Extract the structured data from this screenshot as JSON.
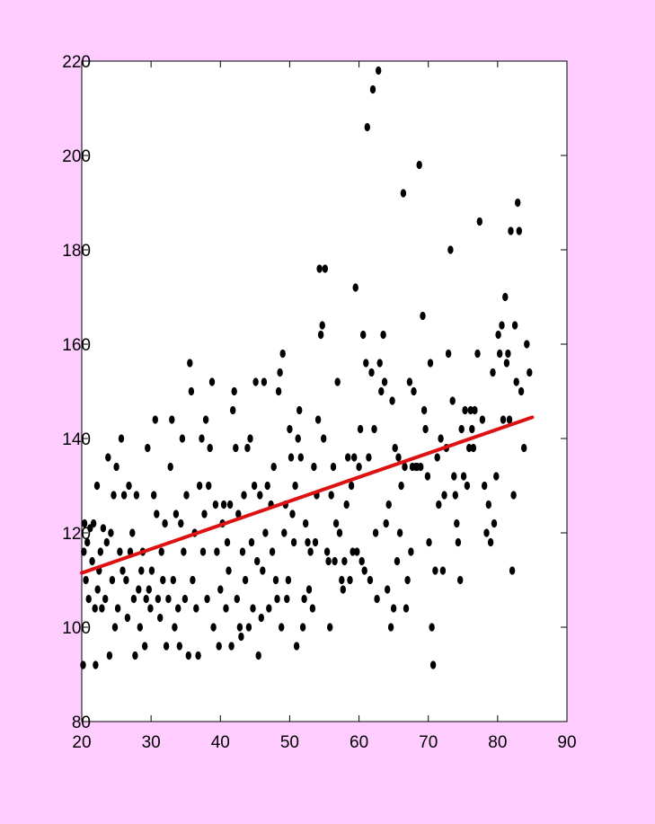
{
  "chart_data": {
    "type": "scatter",
    "title": "",
    "xlabel": "",
    "ylabel": "",
    "xlim": [
      20,
      90
    ],
    "ylim": [
      80,
      220
    ],
    "x_ticks": [
      20,
      30,
      40,
      50,
      60,
      70,
      80,
      90
    ],
    "y_ticks": [
      80,
      100,
      120,
      140,
      160,
      180,
      200,
      220
    ],
    "x_tick_labels": [
      "20",
      "30",
      "40",
      "50",
      "60",
      "70",
      "80",
      "90"
    ],
    "y_tick_labels": [
      "80",
      "100",
      "120",
      "140",
      "160",
      "180",
      "200",
      "220"
    ],
    "grid": false,
    "legend": "none",
    "colors": {
      "background": "#FFCCFF",
      "plot_area": "#FFFFFF",
      "points": "#000000",
      "fit_line": "#DD1111"
    },
    "series": [
      {
        "type": "scatter",
        "points": [
          [
            20.2,
            92
          ],
          [
            20.3,
            116
          ],
          [
            20.4,
            122
          ],
          [
            20.6,
            110
          ],
          [
            20.8,
            118
          ],
          [
            21,
            106
          ],
          [
            21.2,
            121
          ],
          [
            21.5,
            114
          ],
          [
            21.7,
            122
          ],
          [
            21.9,
            104
          ],
          [
            22,
            92
          ],
          [
            22.2,
            130
          ],
          [
            22.3,
            108
          ],
          [
            22.5,
            112
          ],
          [
            22.7,
            116
          ],
          [
            22.9,
            104
          ],
          [
            23.1,
            121
          ],
          [
            23.4,
            106
          ],
          [
            23.6,
            118
          ],
          [
            23.8,
            136
          ],
          [
            24,
            94
          ],
          [
            24.2,
            120
          ],
          [
            24.4,
            110
          ],
          [
            24.6,
            128
          ],
          [
            24.8,
            100
          ],
          [
            25,
            134
          ],
          [
            25.2,
            104
          ],
          [
            25.5,
            116
          ],
          [
            25.7,
            140
          ],
          [
            25.9,
            112
          ],
          [
            26.1,
            128
          ],
          [
            26.4,
            110
          ],
          [
            26.6,
            102
          ],
          [
            26.8,
            130
          ],
          [
            27,
            116
          ],
          [
            27.3,
            120
          ],
          [
            27.5,
            106
          ],
          [
            27.7,
            94
          ],
          [
            27.9,
            128
          ],
          [
            28.2,
            108
          ],
          [
            28.4,
            100
          ],
          [
            28.6,
            112
          ],
          [
            28.8,
            116
          ],
          [
            29.1,
            96
          ],
          [
            29.3,
            106
          ],
          [
            29.5,
            138
          ],
          [
            29.7,
            108
          ],
          [
            29.9,
            104
          ],
          [
            30.1,
            112
          ],
          [
            30.4,
            128
          ],
          [
            30.6,
            144
          ],
          [
            30.8,
            124
          ],
          [
            31,
            106
          ],
          [
            31.3,
            102
          ],
          [
            31.5,
            116
          ],
          [
            31.7,
            110
          ],
          [
            32,
            122
          ],
          [
            32.2,
            96
          ],
          [
            32.5,
            106
          ],
          [
            32.8,
            134
          ],
          [
            33,
            144
          ],
          [
            33.2,
            110
          ],
          [
            33.4,
            100
          ],
          [
            33.6,
            124
          ],
          [
            33.9,
            104
          ],
          [
            34.1,
            96
          ],
          [
            34.3,
            122
          ],
          [
            34.5,
            140
          ],
          [
            34.7,
            116
          ],
          [
            34.9,
            106
          ],
          [
            35.1,
            128
          ],
          [
            35.4,
            94
          ],
          [
            35.6,
            156
          ],
          [
            35.8,
            150
          ],
          [
            36,
            110
          ],
          [
            36.3,
            120
          ],
          [
            36.5,
            104
          ],
          [
            36.8,
            94
          ],
          [
            37,
            130
          ],
          [
            37.3,
            140
          ],
          [
            37.5,
            116
          ],
          [
            37.7,
            124
          ],
          [
            37.9,
            144
          ],
          [
            38.1,
            106
          ],
          [
            38.3,
            130
          ],
          [
            38.5,
            138
          ],
          [
            38.8,
            152
          ],
          [
            39,
            100
          ],
          [
            39.3,
            126
          ],
          [
            39.5,
            116
          ],
          [
            39.8,
            96
          ],
          [
            40,
            108
          ],
          [
            40.3,
            122
          ],
          [
            40.5,
            126
          ],
          [
            40.8,
            104
          ],
          [
            41,
            118
          ],
          [
            41.2,
            112
          ],
          [
            41.4,
            126
          ],
          [
            41.6,
            96
          ],
          [
            41.8,
            146
          ],
          [
            42,
            150
          ],
          [
            42.2,
            138
          ],
          [
            42.4,
            106
          ],
          [
            42.6,
            124
          ],
          [
            42.8,
            100
          ],
          [
            43,
            98
          ],
          [
            43.2,
            116
          ],
          [
            43.4,
            128
          ],
          [
            43.6,
            110
          ],
          [
            43.9,
            138
          ],
          [
            44.1,
            100
          ],
          [
            44.3,
            140
          ],
          [
            44.5,
            118
          ],
          [
            44.7,
            104
          ],
          [
            44.9,
            130
          ],
          [
            45.1,
            152
          ],
          [
            45.3,
            114
          ],
          [
            45.5,
            94
          ],
          [
            45.7,
            128
          ],
          [
            45.9,
            102
          ],
          [
            46.1,
            112
          ],
          [
            46.3,
            152
          ],
          [
            46.5,
            120
          ],
          [
            46.8,
            130
          ],
          [
            47,
            104
          ],
          [
            47.3,
            126
          ],
          [
            47.5,
            116
          ],
          [
            47.7,
            134
          ],
          [
            48,
            110
          ],
          [
            48.2,
            106
          ],
          [
            48.4,
            150
          ],
          [
            48.6,
            154
          ],
          [
            48.8,
            100
          ],
          [
            49,
            158
          ],
          [
            49.2,
            120
          ],
          [
            49.4,
            126
          ],
          [
            49.6,
            106
          ],
          [
            49.8,
            110
          ],
          [
            50,
            142
          ],
          [
            50.2,
            136
          ],
          [
            50.4,
            124
          ],
          [
            50.6,
            118
          ],
          [
            50.8,
            130
          ],
          [
            51,
            96
          ],
          [
            51.2,
            140
          ],
          [
            51.4,
            146
          ],
          [
            51.6,
            136
          ],
          [
            51.9,
            100
          ],
          [
            52.1,
            106
          ],
          [
            52.3,
            122
          ],
          [
            52.6,
            118
          ],
          [
            52.8,
            108
          ],
          [
            53,
            116
          ],
          [
            53.3,
            104
          ],
          [
            53.5,
            134
          ],
          [
            53.7,
            118
          ],
          [
            53.9,
            128
          ],
          [
            54.1,
            144
          ],
          [
            54.3,
            176
          ],
          [
            54.5,
            162
          ],
          [
            54.7,
            164
          ],
          [
            54.9,
            140
          ],
          [
            55.1,
            176
          ],
          [
            55.4,
            116
          ],
          [
            55.6,
            114
          ],
          [
            55.8,
            100
          ],
          [
            56,
            128
          ],
          [
            56.3,
            134
          ],
          [
            56.5,
            114
          ],
          [
            56.7,
            122
          ],
          [
            56.9,
            152
          ],
          [
            57.2,
            120
          ],
          [
            57.5,
            110
          ],
          [
            57.7,
            108
          ],
          [
            57.9,
            114
          ],
          [
            58.2,
            126
          ],
          [
            58.4,
            136
          ],
          [
            58.7,
            110
          ],
          [
            58.9,
            130
          ],
          [
            59.1,
            116
          ],
          [
            59.3,
            136
          ],
          [
            59.5,
            172
          ],
          [
            59.7,
            116
          ],
          [
            60,
            134
          ],
          [
            60.2,
            142
          ],
          [
            60.4,
            114
          ],
          [
            60.6,
            162
          ],
          [
            60.8,
            112
          ],
          [
            61,
            156
          ],
          [
            61.2,
            206
          ],
          [
            61.4,
            136
          ],
          [
            61.6,
            110
          ],
          [
            61.8,
            154
          ],
          [
            62,
            214
          ],
          [
            62.2,
            142
          ],
          [
            62.4,
            120
          ],
          [
            62.6,
            106
          ],
          [
            62.8,
            218
          ],
          [
            63,
            156
          ],
          [
            63.2,
            150
          ],
          [
            63.5,
            162
          ],
          [
            63.7,
            152
          ],
          [
            63.9,
            122
          ],
          [
            64.1,
            108
          ],
          [
            64.3,
            126
          ],
          [
            64.6,
            100
          ],
          [
            64.8,
            148
          ],
          [
            65,
            104
          ],
          [
            65.2,
            138
          ],
          [
            65.5,
            114
          ],
          [
            65.7,
            136
          ],
          [
            65.9,
            120
          ],
          [
            66.1,
            130
          ],
          [
            66.4,
            192
          ],
          [
            66.6,
            134
          ],
          [
            66.8,
            104
          ],
          [
            67,
            110
          ],
          [
            67.3,
            152
          ],
          [
            67.5,
            116
          ],
          [
            67.7,
            134
          ],
          [
            67.9,
            150
          ],
          [
            68.2,
            134
          ],
          [
            68.4,
            134
          ],
          [
            68.7,
            198
          ],
          [
            68.9,
            134
          ],
          [
            69.2,
            166
          ],
          [
            69.4,
            146
          ],
          [
            69.6,
            142
          ],
          [
            69.9,
            132
          ],
          [
            70.1,
            118
          ],
          [
            70.3,
            156
          ],
          [
            70.5,
            100
          ],
          [
            70.7,
            92
          ],
          [
            71,
            112
          ],
          [
            71.3,
            136
          ],
          [
            71.5,
            126
          ],
          [
            71.8,
            140
          ],
          [
            72.1,
            112
          ],
          [
            72.3,
            128
          ],
          [
            72.6,
            138
          ],
          [
            72.9,
            158
          ],
          [
            73.2,
            180
          ],
          [
            73.5,
            148
          ],
          [
            73.7,
            132
          ],
          [
            73.9,
            128
          ],
          [
            74.1,
            122
          ],
          [
            74.3,
            118
          ],
          [
            74.6,
            110
          ],
          [
            74.8,
            142
          ],
          [
            75.1,
            132
          ],
          [
            75.3,
            146
          ],
          [
            75.6,
            130
          ],
          [
            75.9,
            138
          ],
          [
            76.1,
            146
          ],
          [
            76.3,
            142
          ],
          [
            76.5,
            138
          ],
          [
            76.7,
            146
          ],
          [
            77.1,
            158
          ],
          [
            77.4,
            186
          ],
          [
            77.8,
            144
          ],
          [
            78.1,
            130
          ],
          [
            78.4,
            120
          ],
          [
            78.7,
            126
          ],
          [
            79,
            118
          ],
          [
            79.3,
            154
          ],
          [
            79.5,
            122
          ],
          [
            79.8,
            132
          ],
          [
            80.1,
            162
          ],
          [
            80.3,
            158
          ],
          [
            80.6,
            164
          ],
          [
            80.8,
            144
          ],
          [
            81.1,
            170
          ],
          [
            81.3,
            156
          ],
          [
            81.5,
            158
          ],
          [
            81.7,
            144
          ],
          [
            81.9,
            184
          ],
          [
            82.1,
            112
          ],
          [
            82.3,
            128
          ],
          [
            82.5,
            164
          ],
          [
            82.7,
            152
          ],
          [
            82.9,
            190
          ],
          [
            83.1,
            184
          ],
          [
            83.4,
            150
          ],
          [
            83.8,
            138
          ],
          [
            84.2,
            160
          ],
          [
            84.6,
            154
          ]
        ]
      },
      {
        "type": "line",
        "points": [
          [
            20,
            111.5
          ],
          [
            85,
            144.5
          ]
        ]
      }
    ]
  }
}
